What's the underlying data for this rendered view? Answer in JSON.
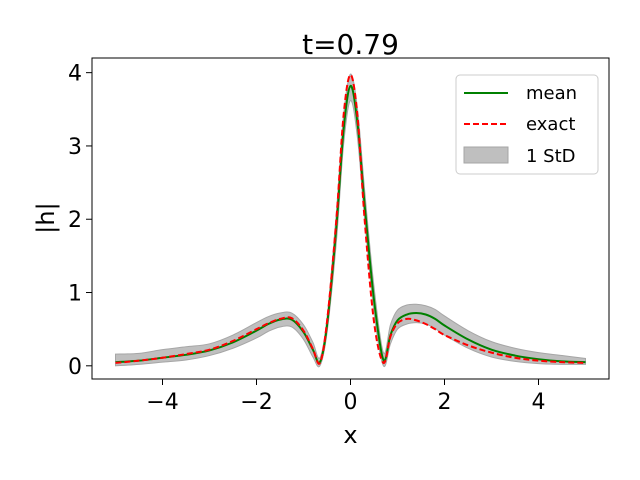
{
  "chart_data": {
    "type": "line",
    "title": "t=0.79",
    "xlabel": "x",
    "ylabel": "|h|",
    "xlim": [
      -5.5,
      5.5
    ],
    "ylim": [
      -0.18,
      4.2
    ],
    "xticks": [
      -4,
      -2,
      0,
      2,
      4
    ],
    "xtick_labels": [
      "−4",
      "−2",
      "0",
      "2",
      "4"
    ],
    "yticks": [
      0,
      1,
      2,
      3,
      4
    ],
    "ytick_labels": [
      "0",
      "1",
      "2",
      "3",
      "4"
    ],
    "grid": false,
    "legend_position": "top-right",
    "colors": {
      "mean": "#008000",
      "exact": "#ff0000",
      "band": "#bfbfbf",
      "band_edge": "#a6a6a6"
    },
    "x": [
      -5.0,
      -4.5,
      -4.0,
      -3.5,
      -3.0,
      -2.5,
      -2.0,
      -1.75,
      -1.5,
      -1.25,
      -1.0,
      -0.8,
      -0.65,
      -0.5,
      -0.3,
      -0.15,
      0.0,
      0.15,
      0.3,
      0.5,
      0.7,
      0.85,
      1.0,
      1.2,
      1.4,
      1.6,
      1.8,
      2.0,
      2.5,
      3.0,
      3.5,
      4.0,
      4.5,
      5.0
    ],
    "series": [
      {
        "name": "mean",
        "values": [
          0.05,
          0.07,
          0.11,
          0.15,
          0.21,
          0.32,
          0.48,
          0.57,
          0.63,
          0.63,
          0.46,
          0.22,
          0.05,
          0.55,
          1.9,
          3.2,
          3.82,
          3.3,
          2.2,
          0.9,
          0.08,
          0.42,
          0.62,
          0.7,
          0.72,
          0.7,
          0.64,
          0.55,
          0.36,
          0.22,
          0.14,
          0.09,
          0.06,
          0.05
        ]
      },
      {
        "name": "exact",
        "values": [
          0.04,
          0.07,
          0.11,
          0.16,
          0.22,
          0.34,
          0.5,
          0.58,
          0.64,
          0.65,
          0.48,
          0.23,
          0.04,
          0.6,
          2.0,
          3.4,
          3.97,
          3.4,
          2.0,
          0.6,
          0.04,
          0.4,
          0.58,
          0.64,
          0.62,
          0.57,
          0.5,
          0.42,
          0.28,
          0.18,
          0.11,
          0.07,
          0.05,
          0.04
        ]
      },
      {
        "name": "1 StD",
        "lower": [
          0.0,
          0.02,
          0.05,
          0.08,
          0.14,
          0.24,
          0.38,
          0.47,
          0.53,
          0.53,
          0.36,
          0.12,
          0.0,
          0.45,
          1.7,
          3.0,
          3.62,
          3.1,
          2.0,
          0.72,
          0.0,
          0.3,
          0.5,
          0.57,
          0.59,
          0.57,
          0.51,
          0.42,
          0.24,
          0.12,
          0.06,
          0.03,
          0.02,
          0.02
        ],
        "upper": [
          0.16,
          0.17,
          0.22,
          0.26,
          0.3,
          0.42,
          0.59,
          0.67,
          0.72,
          0.72,
          0.56,
          0.32,
          0.11,
          0.65,
          2.1,
          3.4,
          3.98,
          3.5,
          2.4,
          1.08,
          0.18,
          0.56,
          0.76,
          0.83,
          0.84,
          0.82,
          0.77,
          0.68,
          0.48,
          0.33,
          0.24,
          0.18,
          0.14,
          0.1
        ]
      }
    ]
  }
}
